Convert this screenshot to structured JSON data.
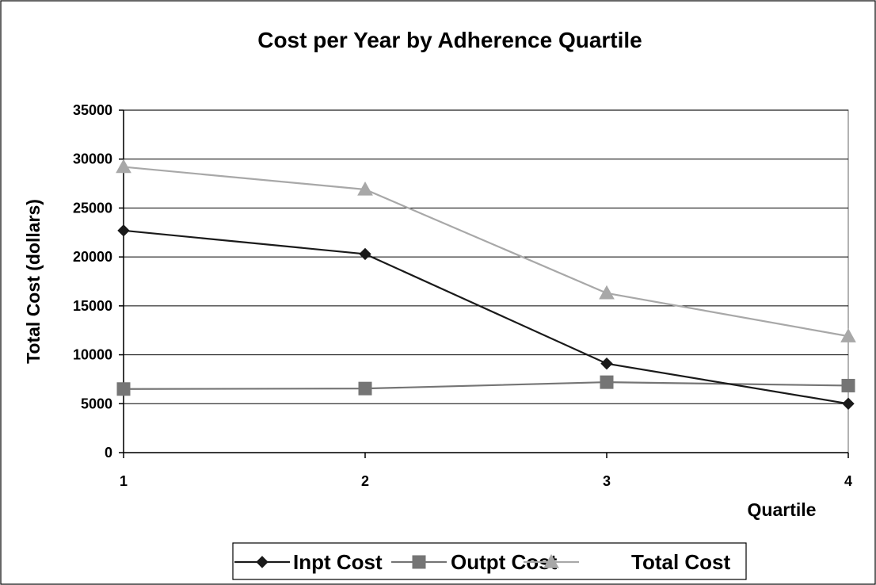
{
  "chart_data": {
    "type": "line",
    "title": "Cost per Year by Adherence Quartile",
    "xlabel": "Quartile",
    "ylabel": "Total Cost (dollars)",
    "categories": [
      "1",
      "2",
      "3",
      "4"
    ],
    "ylim": [
      0,
      35000
    ],
    "yticks": [
      "0",
      "5000",
      "10000",
      "15000",
      "20000",
      "25000",
      "30000",
      "35000"
    ],
    "grid": true,
    "legend_position": "bottom",
    "series": [
      {
        "name": "Inpt Cost",
        "values": [
          22700,
          20300,
          9100,
          5000
        ],
        "color": "#1a1a1a",
        "marker": "diamond"
      },
      {
        "name": "Outpt Cost",
        "values": [
          6500,
          6550,
          7200,
          6850
        ],
        "color": "#757575",
        "marker": "square"
      },
      {
        "name": "Total Cost",
        "values": [
          29200,
          26900,
          16300,
          11900
        ],
        "color": "#a8a8a8",
        "marker": "triangle"
      }
    ]
  }
}
